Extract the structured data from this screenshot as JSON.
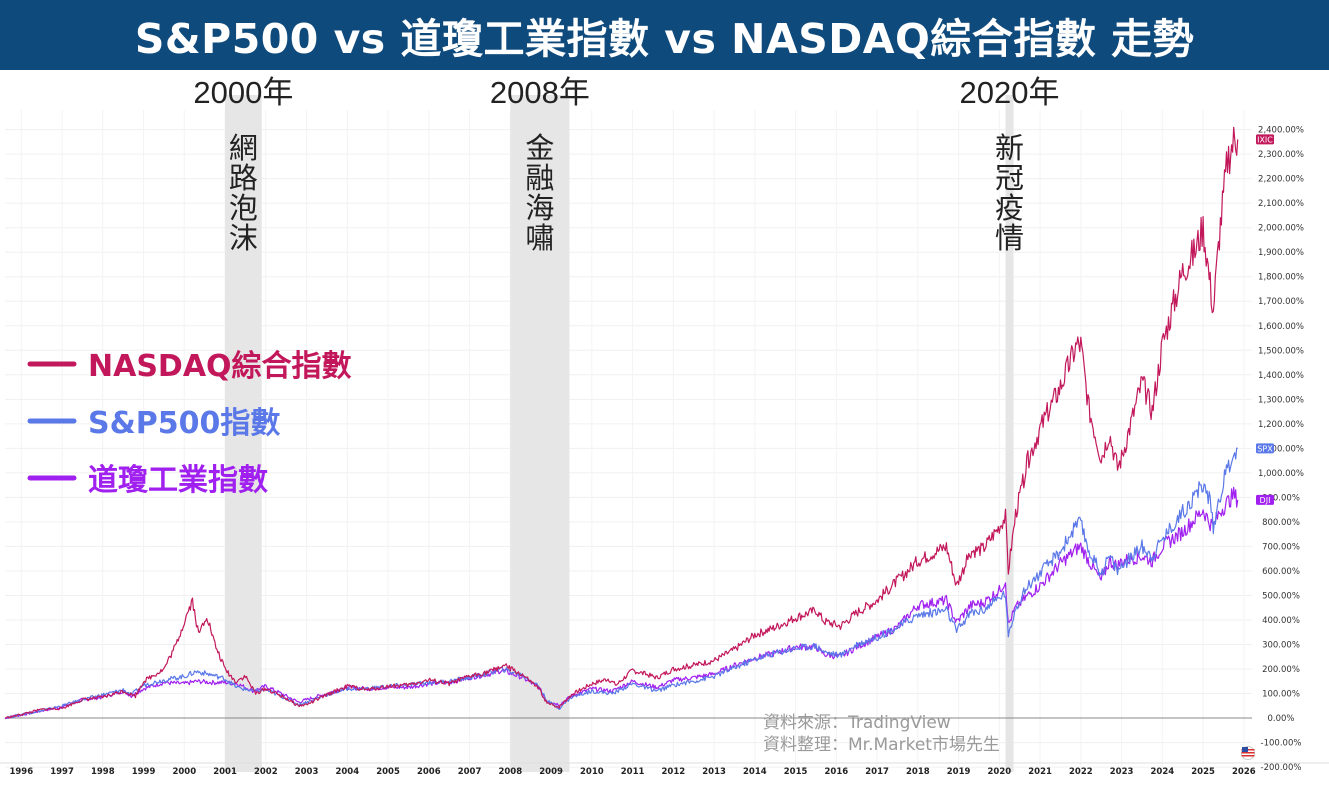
{
  "title": "S&P500 vs 道瓊工業指數 vs NASDAQ綜合指數 走勢",
  "colors": {
    "banner": "#0e4a7c",
    "nasdaq": "#c2185b",
    "sp500": "#5b78e8",
    "dow": "#a020f0",
    "shade": "#e6e6e6"
  },
  "events": [
    {
      "year_label": "2000年",
      "label": "網路泡沫",
      "start": 2001.0,
      "end": 2001.9
    },
    {
      "year_label": "2008年",
      "label": "金融海嘯",
      "start": 2008.0,
      "end": 2009.45
    },
    {
      "year_label": "2020年",
      "label": "新冠疫情",
      "start": 2020.15,
      "end": 2020.35
    }
  ],
  "legend": [
    {
      "key": "nasdaq",
      "label": "NASDAQ綜合指數"
    },
    {
      "key": "sp500",
      "label": "S&P500指數"
    },
    {
      "key": "dow",
      "label": "道瓊工業指數"
    }
  ],
  "source": {
    "line1": "資料來源：TradingView",
    "line2": "資料整理：Mr.Market市場先生"
  },
  "chart_data": {
    "type": "line",
    "x_unit": "year",
    "y_unit": "% change",
    "xlim": [
      1995.6,
      2026.2
    ],
    "ylim": [
      -220,
      2480
    ],
    "y_ticks": [
      -200,
      -100,
      0,
      100,
      200,
      300,
      400,
      500,
      600,
      700,
      800,
      900,
      1000,
      1100,
      1200,
      1300,
      1400,
      1500,
      1600,
      1700,
      1800,
      1900,
      2000,
      2100,
      2200,
      2300,
      2400
    ],
    "y_tick_labels": [
      "-200.00%",
      "-100.00%",
      "0.00%",
      "100.00%",
      "200.00%",
      "300.00%",
      "400.00%",
      "500.00%",
      "600.00%",
      "700.00%",
      "800.00%",
      "900.00%",
      "1,000.00%",
      "1,100.00%",
      "1,200.00%",
      "1,300.00%",
      "1,400.00%",
      "1,500.00%",
      "1,600.00%",
      "1,700.00%",
      "1,800.00%",
      "1,900.00%",
      "2,000.00%",
      "2,100.00%",
      "2,200.00%",
      "2,300.00%",
      "2,400.00%"
    ],
    "x_ticks": [
      1996,
      1997,
      1998,
      1999,
      2000,
      2001,
      2002,
      2003,
      2004,
      2005,
      2006,
      2007,
      2008,
      2009,
      2010,
      2011,
      2012,
      2013,
      2014,
      2015,
      2016,
      2017,
      2018,
      2019,
      2020,
      2021,
      2022,
      2023,
      2024,
      2025,
      2026
    ],
    "x_tick_labels": [
      "1996",
      "1997",
      "1998",
      "1999",
      "2000",
      "2001",
      "2002",
      "2003",
      "2004",
      "2005",
      "2006",
      "2007",
      "2008",
      "2009",
      "2010",
      "2011",
      "2012",
      "2013",
      "2014",
      "2015",
      "2016",
      "2017",
      "2018",
      "2019",
      "2020",
      "2021",
      "2022",
      "2023",
      "2024",
      "2025",
      "2026"
    ],
    "grid": true,
    "legend_position": "left",
    "series": [
      {
        "key": "nasdaq",
        "tag": "IXIC",
        "points": [
          [
            1995.6,
            0
          ],
          [
            1996,
            15
          ],
          [
            1996.5,
            35
          ],
          [
            1997,
            40
          ],
          [
            1997.5,
            75
          ],
          [
            1998,
            85
          ],
          [
            1998.5,
            110
          ],
          [
            1998.8,
            90
          ],
          [
            1999,
            150
          ],
          [
            1999.5,
            200
          ],
          [
            1999.8,
            300
          ],
          [
            2000.1,
            440
          ],
          [
            2000.2,
            480
          ],
          [
            2000.35,
            340
          ],
          [
            2000.55,
            420
          ],
          [
            2000.75,
            300
          ],
          [
            2001,
            200
          ],
          [
            2001.25,
            150
          ],
          [
            2001.5,
            170
          ],
          [
            2001.75,
            100
          ],
          [
            2002,
            120
          ],
          [
            2002.5,
            80
          ],
          [
            2002.8,
            50
          ],
          [
            2003,
            55
          ],
          [
            2003.5,
            95
          ],
          [
            2004,
            130
          ],
          [
            2004.5,
            115
          ],
          [
            2005,
            130
          ],
          [
            2005.5,
            135
          ],
          [
            2006,
            155
          ],
          [
            2006.5,
            140
          ],
          [
            2007,
            170
          ],
          [
            2007.5,
            190
          ],
          [
            2007.85,
            215
          ],
          [
            2008.3,
            175
          ],
          [
            2008.7,
            120
          ],
          [
            2008.9,
            60
          ],
          [
            2009.2,
            45
          ],
          [
            2009.5,
            95
          ],
          [
            2010,
            140
          ],
          [
            2010.4,
            160
          ],
          [
            2010.6,
            135
          ],
          [
            2011,
            195
          ],
          [
            2011.6,
            165
          ],
          [
            2012,
            200
          ],
          [
            2012.5,
            215
          ],
          [
            2013,
            235
          ],
          [
            2013.5,
            280
          ],
          [
            2014,
            340
          ],
          [
            2014.5,
            370
          ],
          [
            2015,
            410
          ],
          [
            2015.5,
            440
          ],
          [
            2015.7,
            395
          ],
          [
            2016.1,
            375
          ],
          [
            2016.5,
            430
          ],
          [
            2017,
            480
          ],
          [
            2017.5,
            560
          ],
          [
            2018,
            640
          ],
          [
            2018.7,
            700
          ],
          [
            2018.95,
            540
          ],
          [
            2019.3,
            680
          ],
          [
            2019.6,
            690
          ],
          [
            2020,
            780
          ],
          [
            2020.15,
            820
          ],
          [
            2020.22,
            600
          ],
          [
            2020.4,
            830
          ],
          [
            2020.7,
            1050
          ],
          [
            2021,
            1180
          ],
          [
            2021.5,
            1350
          ],
          [
            2021.9,
            1520
          ],
          [
            2022,
            1520
          ],
          [
            2022.2,
            1260
          ],
          [
            2022.5,
            1060
          ],
          [
            2022.7,
            1160
          ],
          [
            2022.9,
            1020
          ],
          [
            2023,
            1060
          ],
          [
            2023.5,
            1370
          ],
          [
            2023.75,
            1250
          ],
          [
            2024,
            1520
          ],
          [
            2024.5,
            1820
          ],
          [
            2024.8,
            1900
          ],
          [
            2025,
            2000
          ],
          [
            2025.15,
            1800
          ],
          [
            2025.25,
            1660
          ],
          [
            2025.4,
            1970
          ],
          [
            2025.6,
            2280
          ],
          [
            2025.75,
            2350
          ],
          [
            2025.85,
            2360
          ]
        ]
      },
      {
        "key": "sp500",
        "tag": "SPX",
        "points": [
          [
            1995.6,
            0
          ],
          [
            1996,
            15
          ],
          [
            1996.5,
            30
          ],
          [
            1997,
            50
          ],
          [
            1997.5,
            75
          ],
          [
            1998,
            95
          ],
          [
            1998.5,
            115
          ],
          [
            1998.7,
            95
          ],
          [
            1999,
            135
          ],
          [
            1999.5,
            155
          ],
          [
            2000,
            170
          ],
          [
            2000.3,
            190
          ],
          [
            2000.7,
            175
          ],
          [
            2001,
            160
          ],
          [
            2001.3,
            125
          ],
          [
            2001.7,
            110
          ],
          [
            2002,
            115
          ],
          [
            2002.5,
            80
          ],
          [
            2002.8,
            55
          ],
          [
            2003,
            65
          ],
          [
            2003.5,
            95
          ],
          [
            2004,
            120
          ],
          [
            2004.5,
            120
          ],
          [
            2005,
            130
          ],
          [
            2005.5,
            135
          ],
          [
            2006,
            145
          ],
          [
            2006.5,
            150
          ],
          [
            2007,
            165
          ],
          [
            2007.5,
            185
          ],
          [
            2007.8,
            200
          ],
          [
            2008.3,
            175
          ],
          [
            2008.7,
            130
          ],
          [
            2008.9,
            70
          ],
          [
            2009.2,
            40
          ],
          [
            2009.5,
            85
          ],
          [
            2010,
            110
          ],
          [
            2010.5,
            100
          ],
          [
            2011,
            140
          ],
          [
            2011.6,
            110
          ],
          [
            2012,
            135
          ],
          [
            2012.5,
            150
          ],
          [
            2013,
            170
          ],
          [
            2013.5,
            205
          ],
          [
            2014,
            240
          ],
          [
            2014.5,
            265
          ],
          [
            2015,
            285
          ],
          [
            2015.5,
            295
          ],
          [
            2015.7,
            270
          ],
          [
            2016.1,
            255
          ],
          [
            2016.5,
            300
          ],
          [
            2017,
            330
          ],
          [
            2017.5,
            370
          ],
          [
            2018,
            420
          ],
          [
            2018.7,
            440
          ],
          [
            2018.95,
            355
          ],
          [
            2019.3,
            430
          ],
          [
            2019.6,
            440
          ],
          [
            2020,
            490
          ],
          [
            2020.15,
            510
          ],
          [
            2020.22,
            330
          ],
          [
            2020.4,
            450
          ],
          [
            2020.7,
            540
          ],
          [
            2021,
            590
          ],
          [
            2021.5,
            680
          ],
          [
            2021.9,
            790
          ],
          [
            2022,
            790
          ],
          [
            2022.2,
            680
          ],
          [
            2022.5,
            590
          ],
          [
            2022.7,
            660
          ],
          [
            2022.9,
            600
          ],
          [
            2023,
            620
          ],
          [
            2023.5,
            700
          ],
          [
            2023.75,
            660
          ],
          [
            2024,
            730
          ],
          [
            2024.5,
            840
          ],
          [
            2024.9,
            930
          ],
          [
            2025,
            950
          ],
          [
            2025.15,
            900
          ],
          [
            2025.25,
            780
          ],
          [
            2025.4,
            900
          ],
          [
            2025.6,
            1020
          ],
          [
            2025.75,
            1080
          ],
          [
            2025.85,
            1100
          ]
        ]
      },
      {
        "key": "dow",
        "tag": "DJI",
        "points": [
          [
            1995.6,
            0
          ],
          [
            1996,
            12
          ],
          [
            1996.5,
            30
          ],
          [
            1997,
            45
          ],
          [
            1997.5,
            75
          ],
          [
            1998,
            85
          ],
          [
            1998.5,
            110
          ],
          [
            1998.7,
            90
          ],
          [
            1999,
            120
          ],
          [
            1999.5,
            145
          ],
          [
            2000,
            140
          ],
          [
            2000.3,
            150
          ],
          [
            2000.7,
            145
          ],
          [
            2001,
            145
          ],
          [
            2001.3,
            140
          ],
          [
            2001.7,
            110
          ],
          [
            2002,
            130
          ],
          [
            2002.5,
            90
          ],
          [
            2002.8,
            65
          ],
          [
            2003,
            75
          ],
          [
            2003.5,
            100
          ],
          [
            2004,
            125
          ],
          [
            2004.5,
            120
          ],
          [
            2005,
            125
          ],
          [
            2005.5,
            125
          ],
          [
            2006,
            140
          ],
          [
            2006.5,
            145
          ],
          [
            2007,
            165
          ],
          [
            2007.5,
            180
          ],
          [
            2007.8,
            195
          ],
          [
            2008.3,
            165
          ],
          [
            2008.7,
            125
          ],
          [
            2008.9,
            70
          ],
          [
            2009.2,
            55
          ],
          [
            2009.5,
            90
          ],
          [
            2010,
            120
          ],
          [
            2010.5,
            110
          ],
          [
            2011,
            150
          ],
          [
            2011.6,
            125
          ],
          [
            2012,
            155
          ],
          [
            2012.5,
            165
          ],
          [
            2013,
            180
          ],
          [
            2013.5,
            215
          ],
          [
            2014,
            245
          ],
          [
            2014.5,
            265
          ],
          [
            2015,
            290
          ],
          [
            2015.5,
            290
          ],
          [
            2015.7,
            260
          ],
          [
            2016.1,
            250
          ],
          [
            2016.5,
            290
          ],
          [
            2017,
            330
          ],
          [
            2017.5,
            370
          ],
          [
            2018,
            460
          ],
          [
            2018.7,
            480
          ],
          [
            2018.95,
            390
          ],
          [
            2019.3,
            460
          ],
          [
            2019.6,
            470
          ],
          [
            2020,
            520
          ],
          [
            2020.15,
            560
          ],
          [
            2020.22,
            380
          ],
          [
            2020.4,
            450
          ],
          [
            2020.7,
            500
          ],
          [
            2021,
            540
          ],
          [
            2021.5,
            630
          ],
          [
            2021.9,
            690
          ],
          [
            2022,
            700
          ],
          [
            2022.2,
            640
          ],
          [
            2022.5,
            560
          ],
          [
            2022.7,
            640
          ],
          [
            2022.9,
            620
          ],
          [
            2023,
            640
          ],
          [
            2023.5,
            660
          ],
          [
            2023.75,
            640
          ],
          [
            2024,
            700
          ],
          [
            2024.5,
            760
          ],
          [
            2024.9,
            830
          ],
          [
            2025,
            850
          ],
          [
            2025.15,
            800
          ],
          [
            2025.25,
            780
          ],
          [
            2025.4,
            840
          ],
          [
            2025.6,
            880
          ],
          [
            2025.75,
            910
          ],
          [
            2025.85,
            890
          ]
        ]
      }
    ]
  }
}
